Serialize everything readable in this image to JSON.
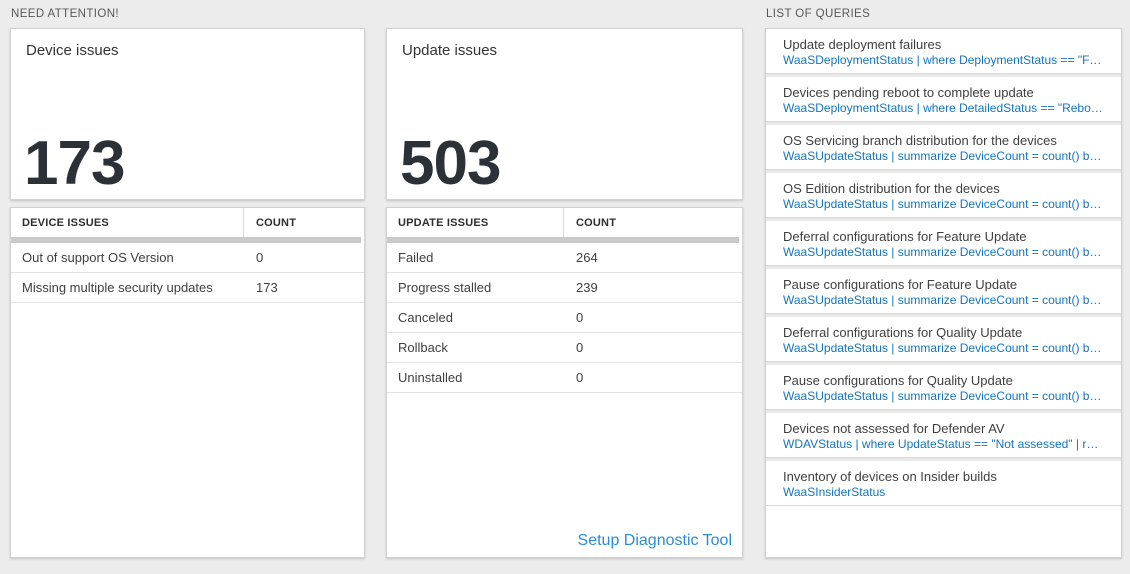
{
  "sections": {
    "need_attention_label": "NEED ATTENTION!",
    "queries_label": "LIST OF QUERIES"
  },
  "device_card": {
    "title": "Device issues",
    "big_number": "173",
    "table": {
      "headers": [
        "DEVICE ISSUES",
        "COUNT"
      ],
      "rows": [
        {
          "label": "Out of support OS Version",
          "count": "0"
        },
        {
          "label": "Missing multiple security updates",
          "count": "173"
        }
      ]
    }
  },
  "update_card": {
    "title": "Update issues",
    "big_number": "503",
    "table": {
      "headers": [
        "UPDATE ISSUES",
        "COUNT"
      ],
      "rows": [
        {
          "label": "Failed",
          "count": "264"
        },
        {
          "label": "Progress stalled",
          "count": "239"
        },
        {
          "label": "Canceled",
          "count": "0"
        },
        {
          "label": "Rollback",
          "count": "0"
        },
        {
          "label": "Uninstalled",
          "count": "0"
        }
      ]
    },
    "link_label": "Setup Diagnostic Tool"
  },
  "queries_card": {
    "items": [
      {
        "title": "Update deployment failures",
        "query": "WaaSDeploymentStatus | where DeploymentStatus == \"Failed\" |..."
      },
      {
        "title": "Devices pending reboot to complete update",
        "query": "WaaSDeploymentStatus | where DetailedStatus == \"Reboot pend..."
      },
      {
        "title": "OS Servicing branch distribution for the devices",
        "query": "WaaSUpdateStatus | summarize DeviceCount = count() by OSSer..."
      },
      {
        "title": "OS Edition distribution for the devices",
        "query": "WaaSUpdateStatus | summarize DeviceCount = count() by OSEdit..."
      },
      {
        "title": "Deferral configurations for Feature Update",
        "query": "WaaSUpdateStatus | summarize DeviceCount = count() by Featur..."
      },
      {
        "title": "Pause configurations for Feature Update",
        "query": "WaaSUpdateStatus | summarize DeviceCount = count() by Featur..."
      },
      {
        "title": "Deferral configurations for Quality Update",
        "query": "WaaSUpdateStatus | summarize DeviceCount = count() by Qualit..."
      },
      {
        "title": "Pause configurations for Quality Update",
        "query": "WaaSUpdateStatus | summarize DeviceCount = count() by Qualit..."
      },
      {
        "title": "Devices not assessed for Defender AV",
        "query": "WDAVStatus | where UpdateStatus == \"Not assessed\" | render ta..."
      },
      {
        "title": "Inventory of devices on Insider builds",
        "query": "WaaSInsiderStatus"
      }
    ]
  },
  "colors": {
    "query_blue": "#1474bc",
    "link_blue": "#2e8cd3",
    "page_background": "#ececec",
    "big_number_color": "#2b3137"
  }
}
